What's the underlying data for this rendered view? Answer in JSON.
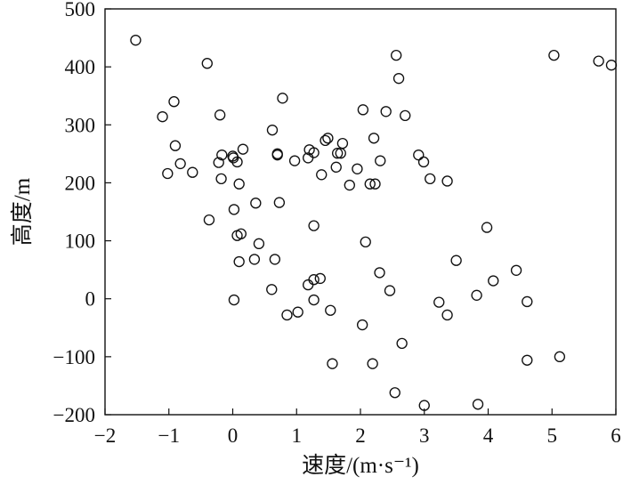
{
  "chart_data": {
    "type": "scatter",
    "title": "",
    "xlabel": "速度/(m·s⁻¹)",
    "ylabel": "高度/m",
    "xlim": [
      -2,
      6
    ],
    "ylim": [
      -200,
      500
    ],
    "x_ticks": [
      -2,
      -1,
      0,
      1,
      2,
      3,
      4,
      5,
      6
    ],
    "y_ticks": [
      -200,
      -100,
      0,
      100,
      200,
      300,
      400,
      500
    ],
    "x_tick_labels": [
      "−2",
      "−1",
      "0",
      "1",
      "2",
      "3",
      "4",
      "5",
      "6"
    ],
    "y_tick_labels": [
      "−200",
      "−100",
      "0",
      "100",
      "200",
      "300",
      "400",
      "500"
    ],
    "grid": false,
    "marker": "open-circle",
    "series": [
      {
        "points": [
          [
            -1.52,
            446
          ],
          [
            -1.1,
            314
          ],
          [
            -0.92,
            340
          ],
          [
            -0.9,
            264
          ],
          [
            -0.82,
            233
          ],
          [
            -1.02,
            216
          ],
          [
            -0.63,
            218
          ],
          [
            -0.4,
            406
          ],
          [
            -0.37,
            136
          ],
          [
            -0.2,
            317
          ],
          [
            -0.22,
            235
          ],
          [
            -0.17,
            248
          ],
          [
            -0.18,
            207
          ],
          [
            0.0,
            246
          ],
          [
            0.01,
            243
          ],
          [
            0.07,
            236
          ],
          [
            0.1,
            198
          ],
          [
            0.16,
            258
          ],
          [
            0.02,
            154
          ],
          [
            0.07,
            109
          ],
          [
            0.13,
            112
          ],
          [
            0.1,
            64
          ],
          [
            0.02,
            -2
          ],
          [
            0.36,
            165
          ],
          [
            0.41,
            95
          ],
          [
            0.34,
            68
          ],
          [
            0.62,
            291
          ],
          [
            0.7,
            250
          ],
          [
            0.7,
            248
          ],
          [
            0.73,
            166
          ],
          [
            0.78,
            346
          ],
          [
            0.66,
            68
          ],
          [
            0.61,
            16
          ],
          [
            0.97,
            238
          ],
          [
            0.85,
            -28
          ],
          [
            1.02,
            -23
          ],
          [
            1.2,
            257
          ],
          [
            1.18,
            243
          ],
          [
            1.27,
            252
          ],
          [
            1.27,
            126
          ],
          [
            1.18,
            24
          ],
          [
            1.27,
            33
          ],
          [
            1.37,
            35
          ],
          [
            1.27,
            -2
          ],
          [
            1.39,
            214
          ],
          [
            1.45,
            273
          ],
          [
            1.49,
            277
          ],
          [
            1.53,
            -20
          ],
          [
            1.56,
            -112
          ],
          [
            1.62,
            227
          ],
          [
            1.64,
            251
          ],
          [
            1.69,
            251
          ],
          [
            1.72,
            268
          ],
          [
            1.83,
            196
          ],
          [
            1.95,
            224
          ],
          [
            2.04,
            326
          ],
          [
            2.08,
            98
          ],
          [
            2.03,
            -45
          ],
          [
            2.15,
            198
          ],
          [
            2.23,
            198
          ],
          [
            2.21,
            277
          ],
          [
            2.19,
            -112
          ],
          [
            2.31,
            238
          ],
          [
            2.3,
            45
          ],
          [
            2.4,
            323
          ],
          [
            2.46,
            14
          ],
          [
            2.56,
            420
          ],
          [
            2.6,
            380
          ],
          [
            2.7,
            316
          ],
          [
            2.54,
            -162
          ],
          [
            2.65,
            -77
          ],
          [
            2.91,
            248
          ],
          [
            2.99,
            236
          ],
          [
            3.09,
            207
          ],
          [
            3.0,
            -184
          ],
          [
            3.36,
            203
          ],
          [
            3.23,
            -6
          ],
          [
            3.36,
            -28
          ],
          [
            3.5,
            66
          ],
          [
            3.82,
            6
          ],
          [
            3.98,
            123
          ],
          [
            4.08,
            31
          ],
          [
            3.84,
            -182
          ],
          [
            4.44,
            49
          ],
          [
            4.61,
            -5
          ],
          [
            4.61,
            -106
          ],
          [
            5.03,
            420
          ],
          [
            5.12,
            -100
          ],
          [
            5.73,
            410
          ],
          [
            5.93,
            403
          ]
        ]
      }
    ]
  }
}
